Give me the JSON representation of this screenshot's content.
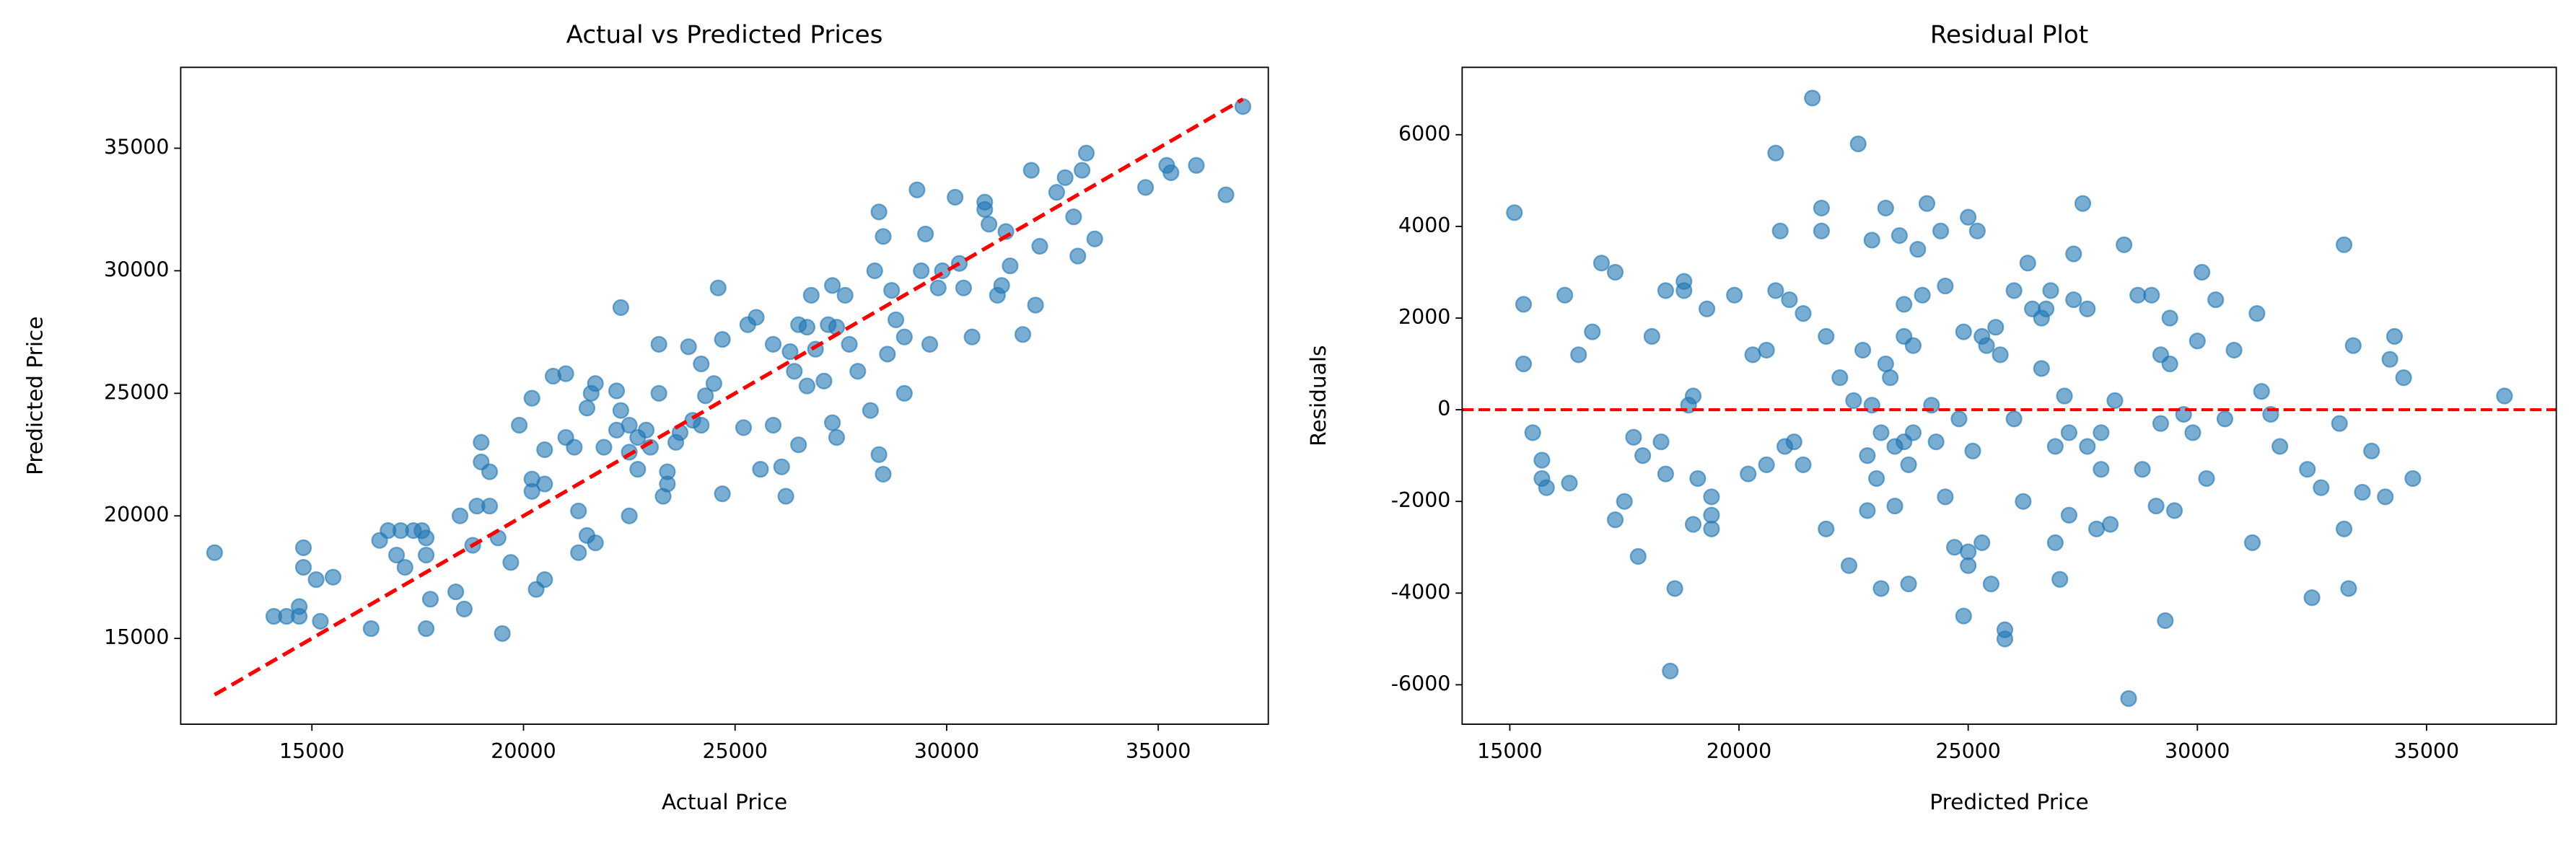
{
  "chart_data": [
    {
      "type": "scatter",
      "title": "Actual vs Predicted Prices",
      "x_label": "Actual Price",
      "y_label": "Predicted Price",
      "color": "#1f77b4",
      "alpha": 0.6,
      "xlim": [
        11900,
        37600
      ],
      "ylim": [
        11500,
        38300
      ],
      "xticks": [
        15000,
        20000,
        25000,
        30000,
        35000
      ],
      "yticks": [
        15000,
        20000,
        25000,
        30000,
        35000
      ],
      "x": [
        12700,
        14100,
        14400,
        14700,
        14700,
        14800,
        14800,
        15100,
        15200,
        15500,
        16400,
        16600,
        16800,
        17000,
        17100,
        17200,
        17400,
        17600,
        17700,
        17700,
        17800,
        17700,
        18400,
        18500,
        18600,
        18800,
        18900,
        19000,
        19000,
        19200,
        19200,
        19400,
        19500,
        19700,
        19900,
        20200,
        20200,
        20200,
        20300,
        20500,
        20500,
        20500,
        20700,
        21000,
        21000,
        21200,
        21300,
        21300,
        21500,
        21500,
        21600,
        21700,
        21700,
        21900,
        22200,
        22200,
        22300,
        22300,
        22500,
        22500,
        22500,
        22700,
        22700,
        22900,
        23000,
        23200,
        23200,
        23300,
        23400,
        23400,
        23600,
        23700,
        23900,
        24000,
        24200,
        24200,
        24300,
        24500,
        24600,
        24700,
        24700,
        25200,
        25300,
        25500,
        25600,
        25900,
        25900,
        26100,
        26200,
        26300,
        26400,
        26500,
        26500,
        26700,
        26700,
        26800,
        26900,
        27100,
        27200,
        27300,
        27300,
        27400,
        27400,
        27600,
        27700,
        27900,
        28200,
        28300,
        28400,
        28500,
        28400,
        28500,
        28600,
        28700,
        28800,
        29000,
        29000,
        29300,
        29400,
        29500,
        29600,
        29800,
        29900,
        30200,
        30300,
        30400,
        30600,
        30900,
        30900,
        31000,
        31200,
        31300,
        31400,
        31500,
        31800,
        32000,
        32100,
        32200,
        32600,
        32800,
        33000,
        33100,
        33200,
        33300,
        33500,
        34700,
        35200,
        35300,
        35900,
        36600,
        37000
      ],
      "values": [
        18500,
        15900,
        15900,
        16300,
        15900,
        18700,
        17900,
        17400,
        15700,
        17500,
        15400,
        19000,
        19400,
        18400,
        19400,
        17900,
        19400,
        19400,
        19100,
        18400,
        16600,
        15400,
        16900,
        20000,
        16200,
        18800,
        20400,
        22200,
        23000,
        21800,
        20400,
        19100,
        15200,
        18100,
        23700,
        21500,
        21000,
        24800,
        17000,
        17400,
        21300,
        22700,
        25700,
        25800,
        23200,
        22800,
        18500,
        20200,
        19200,
        24400,
        25000,
        18900,
        25400,
        22800,
        25100,
        23500,
        28500,
        24300,
        20000,
        22600,
        23700,
        23200,
        21900,
        23500,
        22800,
        25000,
        27000,
        20800,
        21300,
        21800,
        23000,
        23400,
        26900,
        23900,
        26200,
        23700,
        24900,
        25400,
        29300,
        20900,
        27200,
        23600,
        27800,
        28100,
        21900,
        27000,
        23700,
        22000,
        20800,
        26700,
        25900,
        27800,
        22900,
        25300,
        27700,
        29000,
        26800,
        25500,
        27800,
        29400,
        23800,
        23200,
        27700,
        29000,
        27000,
        25900,
        24300,
        30000,
        32400,
        31400,
        22500,
        21700,
        26600,
        29200,
        28000,
        25000,
        27300,
        33300,
        30000,
        31500,
        27000,
        29300,
        30000,
        33000,
        30300,
        29300,
        27300,
        32800,
        32500,
        31900,
        29000,
        29400,
        31600,
        30200,
        27400,
        34100,
        28600,
        31000,
        33200,
        33800,
        32200,
        30600,
        34100,
        34800,
        31300,
        33400,
        34300,
        34000,
        34300,
        33100,
        36700
      ],
      "reference_line": {
        "x": [
          12700,
          37000
        ],
        "y": [
          12700,
          37000
        ],
        "color": "#ff0000"
      }
    },
    {
      "type": "scatter",
      "title": "Residual Plot",
      "x_label": "Predicted Price",
      "y_label": "Residuals",
      "color": "#1f77b4",
      "alpha": 0.6,
      "xlim": [
        13960,
        37830
      ],
      "ylim": [
        -6860,
        7470
      ],
      "xticks": [
        15000,
        20000,
        25000,
        30000,
        35000
      ],
      "yticks": [
        -6000,
        -4000,
        -2000,
        0,
        2000,
        4000,
        6000
      ],
      "x": [
        15100,
        15300,
        15300,
        15500,
        15700,
        15700,
        15800,
        16200,
        16300,
        16500,
        16800,
        17000,
        17300,
        17300,
        17500,
        17700,
        17800,
        17900,
        18100,
        18300,
        18400,
        18400,
        18500,
        18600,
        18800,
        18800,
        18900,
        19000,
        19100,
        19000,
        19300,
        19400,
        19400,
        19400,
        19900,
        20200,
        20300,
        20600,
        20600,
        20800,
        20800,
        20900,
        21000,
        21100,
        21200,
        21400,
        21400,
        21600,
        21800,
        21800,
        21900,
        21900,
        22200,
        22400,
        22500,
        22600,
        22700,
        22800,
        22800,
        22900,
        22900,
        23000,
        23100,
        23100,
        23200,
        23200,
        23300,
        23400,
        23400,
        23500,
        23600,
        23600,
        23600,
        23700,
        23700,
        23800,
        23800,
        23900,
        24000,
        24100,
        24200,
        24300,
        24400,
        24500,
        24500,
        24700,
        24800,
        24900,
        24900,
        25000,
        25000,
        25000,
        25100,
        25200,
        25300,
        25300,
        25400,
        25500,
        25600,
        25700,
        25800,
        25800,
        26000,
        26000,
        26200,
        26300,
        26400,
        26600,
        26600,
        26700,
        26800,
        26900,
        26900,
        27000,
        27100,
        27200,
        27200,
        27300,
        27300,
        27500,
        27600,
        27600,
        27800,
        27900,
        27900,
        28100,
        28200,
        28400,
        28500,
        28700,
        28800,
        29000,
        29100,
        29200,
        29200,
        29300,
        29400,
        29400,
        29500,
        29700,
        29900,
        30000,
        30100,
        30200,
        30400,
        30600,
        30800,
        31200,
        31300,
        31400,
        31600,
        31800,
        32400,
        32500,
        32700,
        33100,
        33200,
        33200,
        33300,
        33400,
        33600,
        33800,
        34100,
        34200,
        34300,
        34500,
        34700,
        36700
      ],
      "values": [
        4300,
        2300,
        1000,
        -500,
        -1100,
        -1500,
        -1700,
        2500,
        -1600,
        1200,
        1700,
        3200,
        3000,
        -2400,
        -2000,
        -600,
        -3200,
        -1000,
        1600,
        -700,
        2600,
        -1400,
        -5700,
        -3900,
        2800,
        2600,
        100,
        300,
        -1500,
        -2500,
        2200,
        -2300,
        -1900,
        -2600,
        2500,
        -1400,
        1200,
        -1200,
        1300,
        5600,
        2600,
        3900,
        -800,
        2400,
        -700,
        2100,
        -1200,
        6800,
        4400,
        3900,
        -2600,
        1600,
        700,
        -3400,
        200,
        5800,
        1300,
        -2200,
        -1000,
        3700,
        100,
        -1500,
        -500,
        -3900,
        1000,
        4400,
        700,
        -2100,
        -800,
        3800,
        -700,
        1600,
        2300,
        -1200,
        -3800,
        -500,
        1400,
        3500,
        2500,
        4500,
        100,
        -700,
        3900,
        -1900,
        2700,
        -3000,
        -200,
        -4500,
        1700,
        4200,
        -3100,
        -3400,
        -900,
        3900,
        -2900,
        1600,
        1400,
        -3800,
        1800,
        1200,
        -4800,
        -5000,
        2600,
        -200,
        -2000,
        3200,
        2200,
        900,
        2000,
        2200,
        2600,
        -2900,
        -800,
        -3700,
        300,
        -2300,
        -500,
        3400,
        2400,
        4500,
        -800,
        2200,
        -2600,
        -1300,
        -500,
        -2500,
        200,
        3600,
        -6300,
        2500,
        -1300,
        2500,
        -2100,
        -300,
        1200,
        -4600,
        2000,
        1000,
        -2200,
        -100,
        -500,
        1500,
        3000,
        -1500,
        2400,
        -200,
        1300,
        -2900,
        2100,
        400,
        -100,
        -800,
        -1300,
        -4100,
        -1700,
        -300,
        3600,
        -2600,
        -3900,
        1400,
        -1800,
        -900,
        -1900,
        1100,
        1600,
        700,
        -1500,
        300
      ],
      "reference_line": {
        "y": 0,
        "color": "#ff0000"
      }
    }
  ]
}
